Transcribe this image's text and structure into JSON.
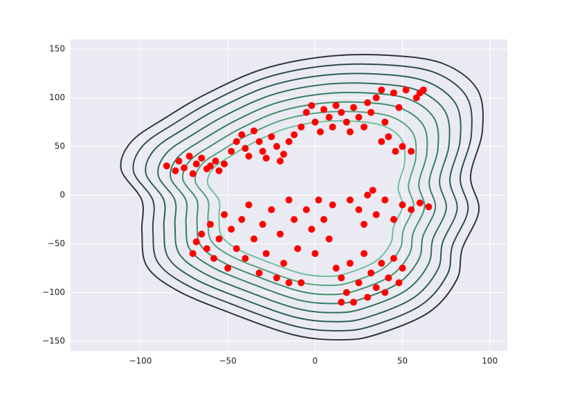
{
  "chart_data": {
    "type": "scatter",
    "color": "#ff0000",
    "grid": true,
    "xlim": [
      -140,
      110
    ],
    "ylim": [
      -160,
      160
    ],
    "xticks": [
      {
        "value": -100,
        "label": "−100"
      },
      {
        "value": -50,
        "label": "−50"
      },
      0,
      50,
      100
    ],
    "yticks": [
      {
        "value": -150,
        "label": "−150"
      },
      {
        "value": -100,
        "label": "−100"
      },
      {
        "value": -50,
        "label": "−50"
      },
      0,
      50,
      100,
      150
    ],
    "x": [
      -85,
      -80,
      -78,
      -75,
      -72,
      -70,
      -68,
      -65,
      -62,
      -60,
      -57,
      -55,
      -52,
      -48,
      -45,
      -42,
      -40,
      -38,
      -35,
      -32,
      -30,
      -28,
      -25,
      -22,
      -20,
      -18,
      -15,
      -12,
      -8,
      -5,
      -2,
      0,
      3,
      5,
      8,
      10,
      12,
      15,
      18,
      20,
      22,
      25,
      28,
      30,
      32,
      35,
      38,
      40,
      42,
      45,
      48,
      50,
      52,
      55,
      58,
      60,
      62,
      46,
      38,
      -70,
      -68,
      -65,
      -62,
      -60,
      -58,
      -55,
      -52,
      -50,
      -48,
      -45,
      -42,
      -40,
      -38,
      -35,
      -32,
      -30,
      -28,
      -25,
      -22,
      -20,
      -18,
      -15,
      -12,
      -10,
      -8,
      -5,
      -2,
      0,
      2,
      5,
      8,
      10,
      12,
      -15,
      15,
      18,
      20,
      22,
      25,
      28,
      30,
      32,
      35,
      38,
      40,
      42,
      45,
      48,
      50,
      20,
      25,
      30,
      35,
      40,
      45,
      50,
      55,
      60,
      65,
      28,
      33,
      15
    ],
    "y": [
      30,
      25,
      35,
      28,
      40,
      22,
      32,
      38,
      27,
      30,
      35,
      25,
      32,
      45,
      55,
      62,
      48,
      40,
      66,
      55,
      45,
      38,
      60,
      50,
      35,
      42,
      55,
      62,
      70,
      85,
      92,
      75,
      65,
      88,
      80,
      70,
      92,
      85,
      75,
      65,
      90,
      80,
      70,
      95,
      85,
      100,
      108,
      75,
      60,
      105,
      90,
      50,
      108,
      45,
      100,
      105,
      108,
      45,
      55,
      -60,
      -48,
      -40,
      -55,
      -30,
      -65,
      -45,
      -20,
      -75,
      -35,
      -55,
      -25,
      -65,
      -10,
      -45,
      -80,
      -30,
      -60,
      -15,
      -85,
      -40,
      -70,
      -5,
      -25,
      -55,
      -90,
      -15,
      -35,
      -60,
      -5,
      -25,
      -45,
      -10,
      -75,
      -90,
      -85,
      -100,
      -70,
      -110,
      -90,
      -60,
      -105,
      -80,
      -95,
      -70,
      -100,
      -85,
      -65,
      -90,
      -75,
      -5,
      -15,
      0,
      -20,
      -5,
      -25,
      -10,
      -15,
      -8,
      -12,
      -30,
      5,
      -110
    ]
  }
}
